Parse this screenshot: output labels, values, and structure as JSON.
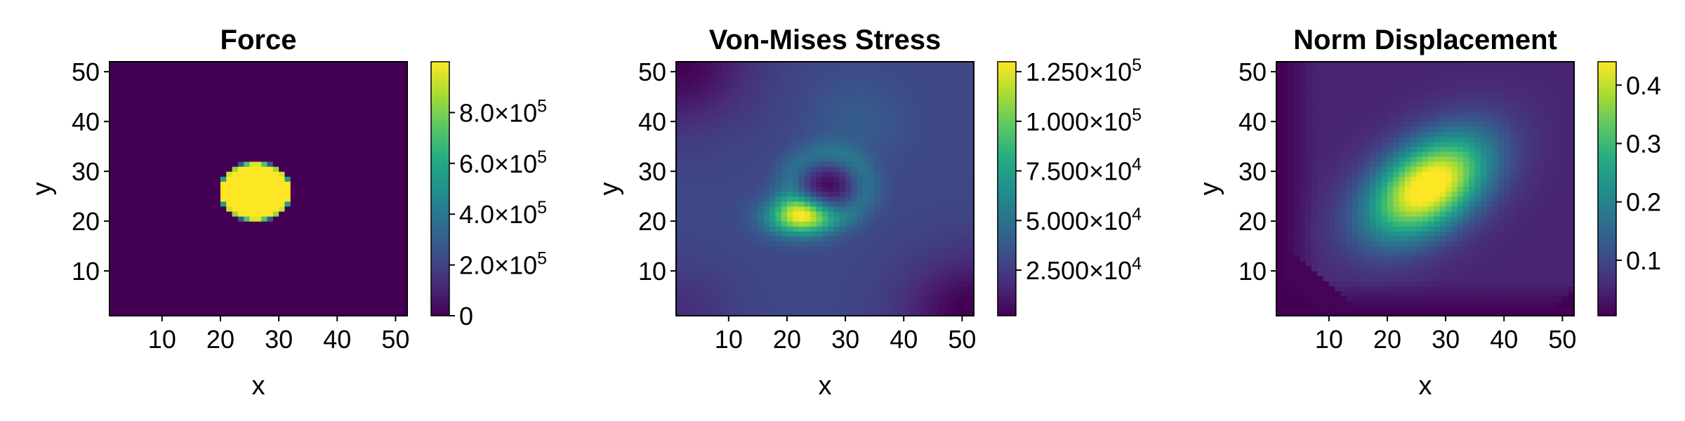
{
  "chart_data": [
    {
      "type": "heatmap",
      "title": "Force",
      "xlabel": "x",
      "ylabel": "y",
      "xlim": [
        1,
        52
      ],
      "ylim": [
        1,
        52
      ],
      "x_ticks": [
        10,
        20,
        30,
        40,
        50
      ],
      "y_ticks": [
        10,
        20,
        30,
        40,
        50
      ],
      "colormap": "viridis",
      "field": {
        "kind": "disk",
        "center": [
          26,
          26
        ],
        "radius_x": 6.2,
        "radius_y": 5.9,
        "inside": 1000000,
        "outside": 0
      },
      "colorbar": {
        "range": [
          0,
          1000000
        ],
        "ticks": [
          {
            "value": 0,
            "mant": "0",
            "exp": ""
          },
          {
            "value": 200000,
            "mant": "2.0×10",
            "exp": "5"
          },
          {
            "value": 400000,
            "mant": "4.0×10",
            "exp": "5"
          },
          {
            "value": 600000,
            "mant": "6.0×10",
            "exp": "5"
          },
          {
            "value": 800000,
            "mant": "8.0×10",
            "exp": "5"
          }
        ]
      }
    },
    {
      "type": "heatmap",
      "title": "Von-Mises Stress",
      "xlabel": "x",
      "ylabel": "y",
      "xlim": [
        1,
        52
      ],
      "ylim": [
        1,
        52
      ],
      "x_ticks": [
        10,
        20,
        30,
        40,
        50
      ],
      "y_ticks": [
        10,
        20,
        30,
        40,
        50
      ],
      "colormap": "viridis",
      "field": {
        "kind": "stress",
        "peak_center": [
          22,
          21
        ],
        "hole_center": [
          27,
          27
        ]
      },
      "colorbar": {
        "range": [
          2000,
          130000
        ],
        "ticks": [
          {
            "value": 25000,
            "mant": "2.500×10",
            "exp": "4"
          },
          {
            "value": 50000,
            "mant": "5.000×10",
            "exp": "4"
          },
          {
            "value": 75000,
            "mant": "7.500×10",
            "exp": "4"
          },
          {
            "value": 100000,
            "mant": "1.000×10",
            "exp": "5"
          },
          {
            "value": 125000,
            "mant": "1.250×10",
            "exp": "5"
          }
        ]
      }
    },
    {
      "type": "heatmap",
      "title": "Norm Displacement",
      "xlabel": "x",
      "ylabel": "y",
      "xlim": [
        1,
        52
      ],
      "ylim": [
        1,
        52
      ],
      "x_ticks": [
        10,
        20,
        30,
        40,
        50
      ],
      "y_ticks": [
        10,
        20,
        30,
        40,
        50
      ],
      "colormap": "viridis",
      "field": {
        "kind": "displacement",
        "peak_center": [
          27,
          27
        ],
        "peak_value": 0.43
      },
      "colorbar": {
        "range": [
          0.005,
          0.44
        ],
        "ticks": [
          {
            "value": 0.1,
            "mant": "0.1",
            "exp": ""
          },
          {
            "value": 0.2,
            "mant": "0.2",
            "exp": ""
          },
          {
            "value": 0.3,
            "mant": "0.3",
            "exp": ""
          },
          {
            "value": 0.4,
            "mant": "0.4",
            "exp": ""
          }
        ]
      }
    }
  ]
}
